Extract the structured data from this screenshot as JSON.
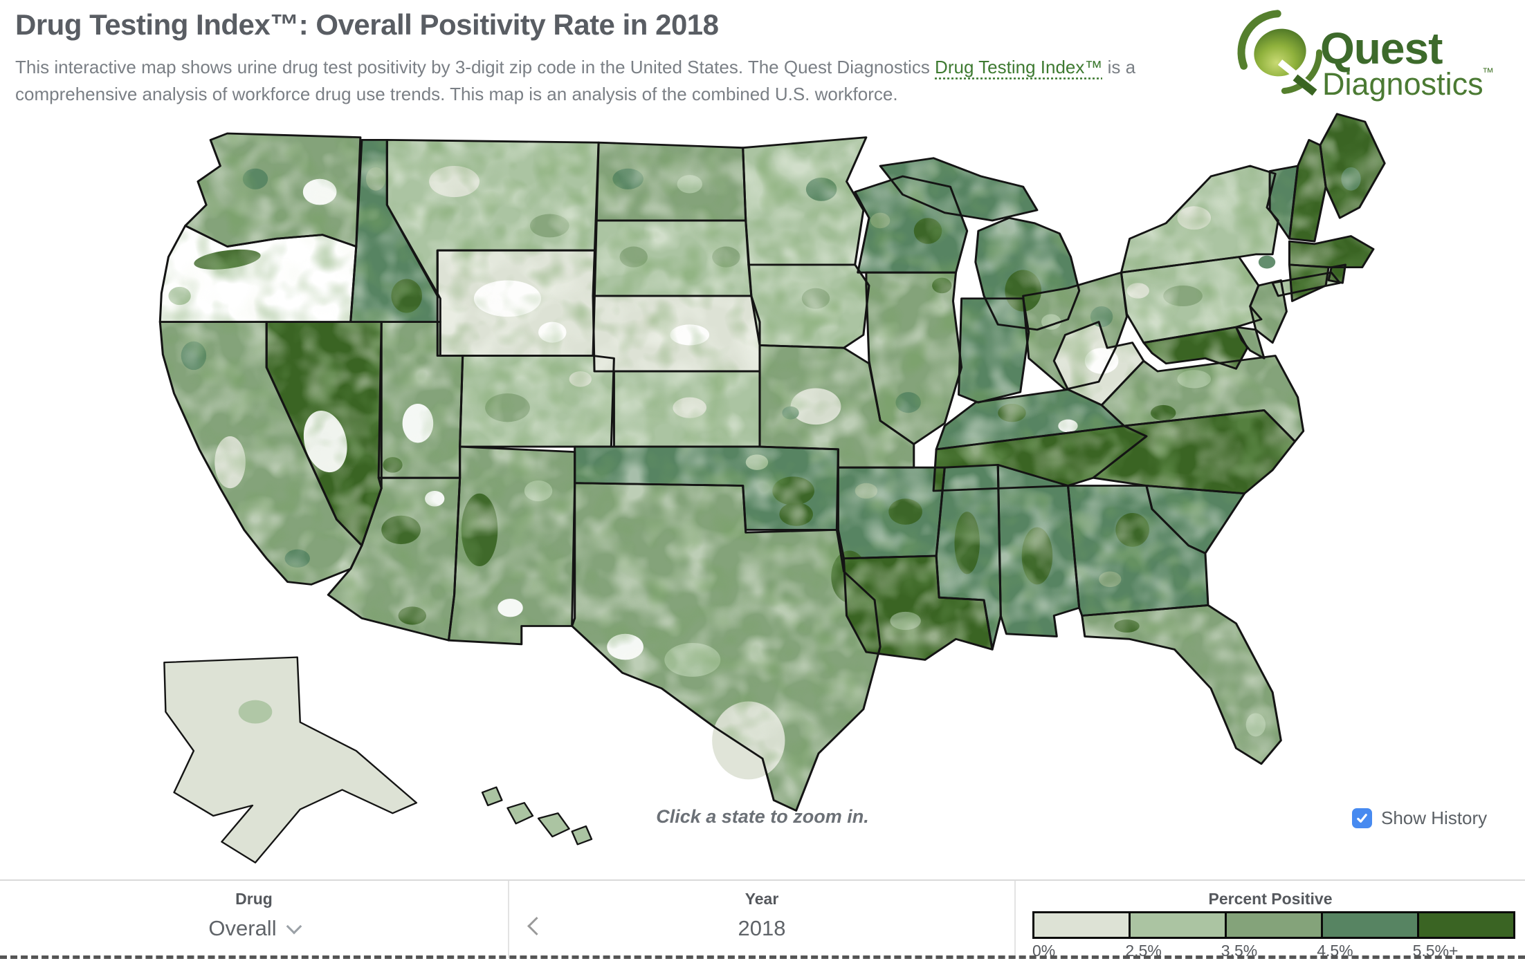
{
  "header": {
    "title": "Drug Testing Index™: Overall Positivity Rate in 2018",
    "subtitle_part1": "This interactive map shows urine drug test positivity by 3-digit zip code in the United States. The Quest Diagnostics ",
    "subtitle_link": "Drug Testing Index™",
    "subtitle_part2": " is a comprehensive analysis of workforce drug use trends. This map is an analysis of the combined U.S. workforce.",
    "logo": {
      "line1": "Quest",
      "line2": "Diagnostics",
      "tm": "™"
    }
  },
  "map": {
    "hint": "Click a state to zoom in.",
    "show_history": {
      "label": "Show History",
      "checked": true,
      "checkbox_color": "#478af0"
    }
  },
  "controls": {
    "drug": {
      "label": "Drug",
      "value": "Overall"
    },
    "year": {
      "label": "Year",
      "value": "2018"
    },
    "legend": {
      "title": "Percent Positive",
      "no_data_color": "#ffffff",
      "stops": [
        {
          "label": "0%",
          "color": "#dde2d5"
        },
        {
          "label": "2.5%",
          "color": "#abc4a2"
        },
        {
          "label": "3.5%",
          "color": "#84a37a"
        },
        {
          "label": "4.5%",
          "color": "#578462"
        },
        {
          "label": "5.5%+",
          "color": "#3a6423"
        }
      ]
    }
  },
  "chart_data": {
    "type": "choropleth",
    "title": "Overall urine drug test positivity rate by 3-digit zip code, combined U.S. workforce",
    "year": 2018,
    "legend_title": "Percent Positive",
    "bin_labels": [
      "0%",
      "2.5%",
      "3.5%",
      "4.5%",
      "5.5%+"
    ],
    "states": [
      {
        "id": "AL",
        "name": "Alabama",
        "level": 3
      },
      {
        "id": "AK",
        "name": "Alaska",
        "level": 0
      },
      {
        "id": "AZ",
        "name": "Arizona",
        "level": 2
      },
      {
        "id": "AR",
        "name": "Arkansas",
        "level": 3
      },
      {
        "id": "CA",
        "name": "California",
        "level": 2
      },
      {
        "id": "CO",
        "name": "Colorado",
        "level": 1
      },
      {
        "id": "CT",
        "name": "Connecticut",
        "level": 4
      },
      {
        "id": "DE",
        "name": "Delaware",
        "level": 2
      },
      {
        "id": "FL",
        "name": "Florida",
        "level": 2
      },
      {
        "id": "GA",
        "name": "Georgia",
        "level": 3
      },
      {
        "id": "HI",
        "name": "Hawaii",
        "level": 1
      },
      {
        "id": "ID",
        "name": "Idaho",
        "level": 3
      },
      {
        "id": "IL",
        "name": "Illinois",
        "level": 2
      },
      {
        "id": "IN",
        "name": "Indiana",
        "level": 3
      },
      {
        "id": "IA",
        "name": "Iowa",
        "level": 1
      },
      {
        "id": "KS",
        "name": "Kansas",
        "level": 1
      },
      {
        "id": "KY",
        "name": "Kentucky",
        "level": 3
      },
      {
        "id": "LA",
        "name": "Louisiana",
        "level": 4
      },
      {
        "id": "ME",
        "name": "Maine",
        "level": 4
      },
      {
        "id": "MD",
        "name": "Maryland",
        "level": 4
      },
      {
        "id": "MA",
        "name": "Massachusetts",
        "level": 4
      },
      {
        "id": "MI",
        "name": "Michigan",
        "level": 3
      },
      {
        "id": "MN",
        "name": "Minnesota",
        "level": 1
      },
      {
        "id": "MS",
        "name": "Mississippi",
        "level": 3
      },
      {
        "id": "MO",
        "name": "Missouri",
        "level": 2
      },
      {
        "id": "MT",
        "name": "Montana",
        "level": 1
      },
      {
        "id": "NE",
        "name": "Nebraska",
        "level": 0
      },
      {
        "id": "NV",
        "name": "Nevada",
        "level": 4
      },
      {
        "id": "NH",
        "name": "New Hampshire",
        "level": 4
      },
      {
        "id": "NJ",
        "name": "New Jersey",
        "level": 2
      },
      {
        "id": "NM",
        "name": "New Mexico",
        "level": 2
      },
      {
        "id": "NY",
        "name": "New York",
        "level": 1
      },
      {
        "id": "NC",
        "name": "North Carolina",
        "level": 4
      },
      {
        "id": "ND",
        "name": "North Dakota",
        "level": 2
      },
      {
        "id": "OH",
        "name": "Ohio",
        "level": 2
      },
      {
        "id": "OK",
        "name": "Oklahoma",
        "level": 3
      },
      {
        "id": "PA",
        "name": "Pennsylvania",
        "level": 1
      },
      {
        "id": "RI",
        "name": "Rhode Island",
        "level": 4
      },
      {
        "id": "SC",
        "name": "South Carolina",
        "level": 3
      },
      {
        "id": "SD",
        "name": "South Dakota",
        "level": 1
      },
      {
        "id": "TN",
        "name": "Tennessee",
        "level": 4
      },
      {
        "id": "TX",
        "name": "Texas",
        "level": 2
      },
      {
        "id": "UT",
        "name": "Utah",
        "level": 2
      },
      {
        "id": "VT",
        "name": "Vermont",
        "level": 3
      },
      {
        "id": "VA",
        "name": "Virginia",
        "level": 2
      },
      {
        "id": "WA",
        "name": "Washington",
        "level": 2
      },
      {
        "id": "WV",
        "name": "West Virginia",
        "level": 0
      },
      {
        "id": "WI",
        "name": "Wisconsin",
        "level": 3
      },
      {
        "id": "WY",
        "name": "Wyoming",
        "level": 0
      }
    ]
  }
}
